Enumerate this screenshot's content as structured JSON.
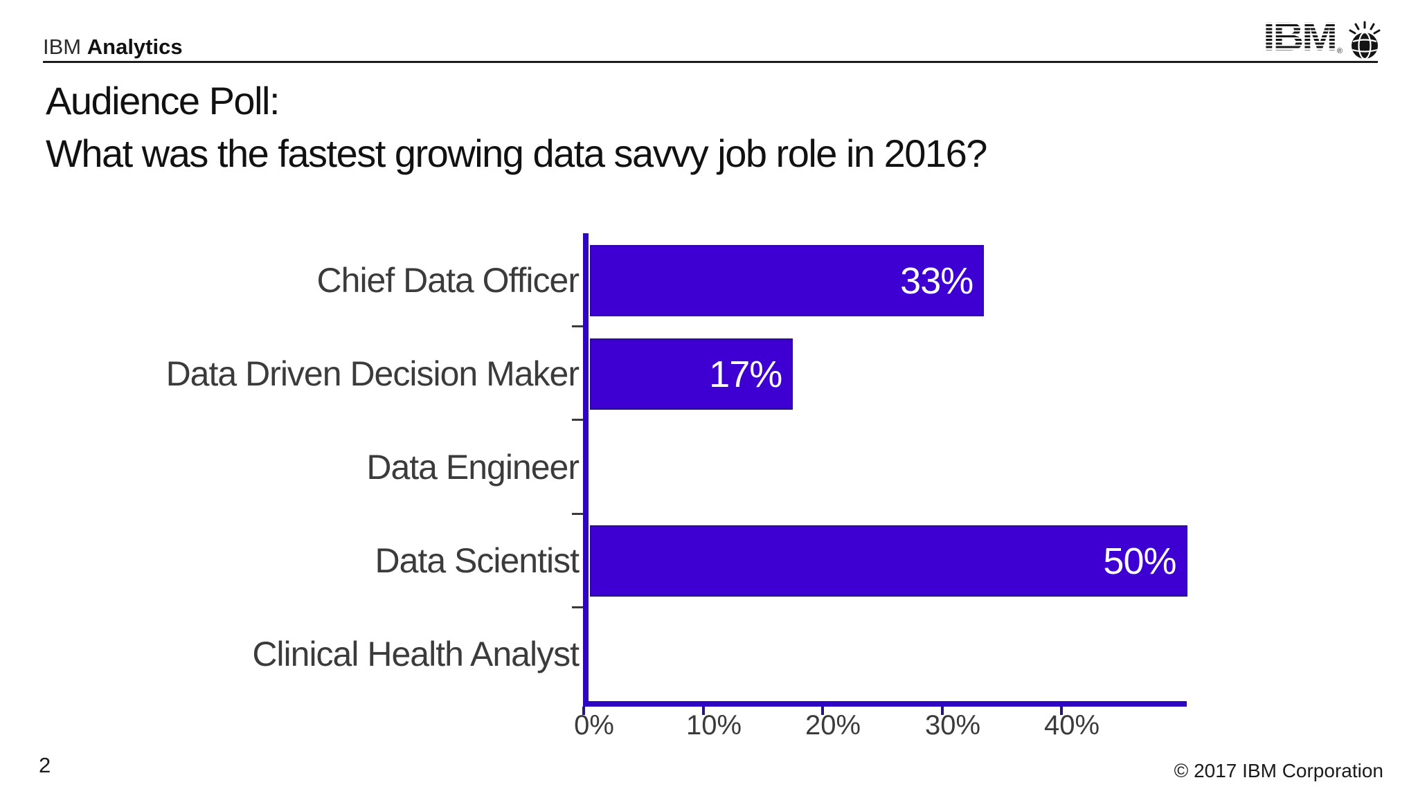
{
  "header": {
    "brand_light": "IBM",
    "brand_bold": "Analytics",
    "logo_text": "IBM",
    "logo_reg": "®"
  },
  "title": {
    "line1": "Audience Poll:",
    "line2": "What was the fastest growing  data savvy job role in 2016?"
  },
  "chart_data": {
    "type": "bar",
    "orientation": "horizontal",
    "categories": [
      "Chief Data Officer",
      "Data Driven Decision Maker",
      "Data Engineer",
      "Data Scientist",
      "Clinical Health Analyst"
    ],
    "values": [
      33,
      17,
      0,
      50,
      0
    ],
    "value_labels": [
      "33%",
      "17%",
      "",
      "50%",
      ""
    ],
    "x_tick_labels": [
      "0%",
      "10%",
      "20%",
      "30%",
      "40%"
    ],
    "x_tick_values": [
      0,
      10,
      20,
      30,
      40
    ],
    "xlim": [
      0,
      50.5
    ],
    "grid": false,
    "value_label_position": "inside-end",
    "bar_color": "#3E00D2",
    "axis_color": "#2F06C4",
    "title": "",
    "xlabel": "",
    "ylabel": ""
  },
  "footer": {
    "page_number": "2",
    "copyright": "© 2017 IBM Corporation"
  }
}
